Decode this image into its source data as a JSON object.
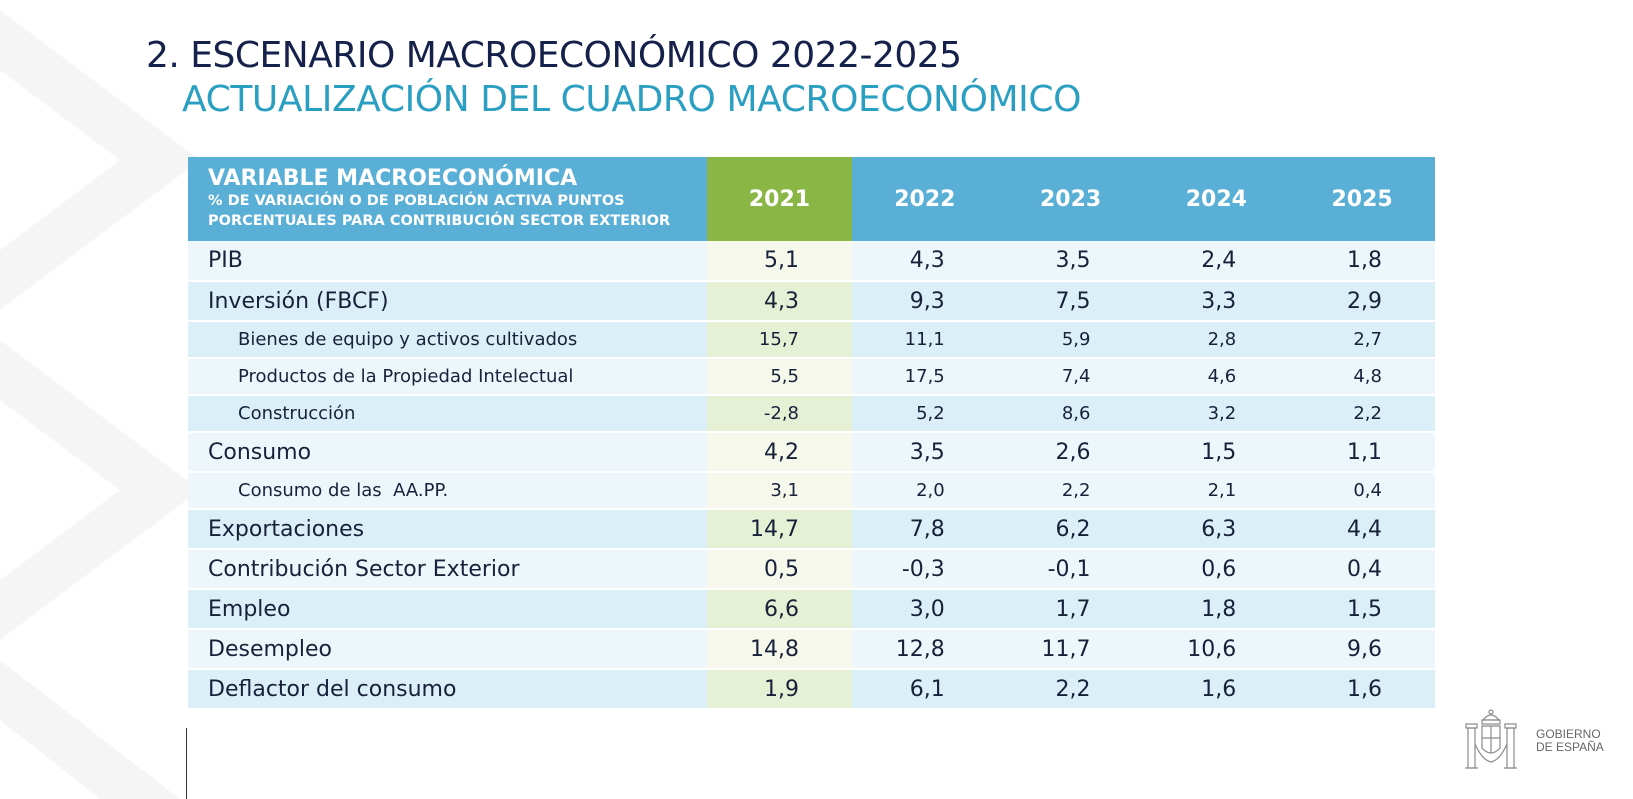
{
  "header": {
    "title": "2. ESCENARIO MACROECONÓMICO 2022-2025",
    "subtitle": "ACTUALIZACIÓN DEL CUADRO MACROECONÓMICO"
  },
  "table": {
    "variable_header": "VARIABLE MACROECONÓMICA",
    "variable_sub_line1": "% DE VARIACIÓN O DE POBLACIÓN ACTIVA PUNTOS",
    "variable_sub_line2": "PORCENTUALES PARA CONTRIBUCIÓN SECTOR EXTERIOR",
    "years": [
      "2021",
      "2022",
      "2023",
      "2024",
      "2025"
    ],
    "rows": [
      {
        "label": "PIB",
        "values": [
          "5,1",
          "4,3",
          "3,5",
          "2,4",
          "1,8"
        ]
      },
      {
        "label": "Inversión (FBCF)",
        "values": [
          "4,3",
          "9,3",
          "7,5",
          "3,3",
          "2,9"
        ]
      },
      {
        "label": "Bienes de equipo y activos cultivados",
        "values": [
          "15,7",
          "11,1",
          "5,9",
          "2,8",
          "2,7"
        ]
      },
      {
        "label": "Productos de la Propiedad Intelectual",
        "values": [
          "5,5",
          "17,5",
          "7,4",
          "4,6",
          "4,8"
        ]
      },
      {
        "label": "Construcción",
        "values": [
          "-2,8",
          "5,2",
          "8,6",
          "3,2",
          "2,2"
        ]
      },
      {
        "label": "Consumo",
        "values": [
          "4,2",
          "3,5",
          "2,6",
          "1,5",
          "1,1"
        ]
      },
      {
        "label": "Consumo de las  AA.PP.",
        "values": [
          "3,1",
          "2,0",
          "2,2",
          "2,1",
          "0,4"
        ]
      },
      {
        "label": "Exportaciones",
        "values": [
          "14,7",
          "7,8",
          "6,2",
          "6,3",
          "4,4"
        ]
      },
      {
        "label": "Contribución Sector Exterior",
        "values": [
          "0,5",
          "-0,3",
          "-0,1",
          "0,6",
          "0,4"
        ]
      },
      {
        "label": "Empleo",
        "values": [
          "6,6",
          "3,0",
          "1,7",
          "1,8",
          "1,5"
        ]
      },
      {
        "label": "Desempleo",
        "values": [
          "14,8",
          "12,8",
          "11,7",
          "10,6",
          "9,6"
        ]
      },
      {
        "label": "Deflactor del consumo",
        "values": [
          "1,9",
          "6,1",
          "2,2",
          "1,6",
          "1,6"
        ]
      }
    ]
  },
  "footer": {
    "logo_line1": "GOBIERNO",
    "logo_line2": "DE ESPAÑA"
  },
  "colors": {
    "title": "#15214b",
    "subtitle": "#2a9fc1",
    "header_blue": "#5aafd6",
    "header_green": "#8ab645"
  }
}
